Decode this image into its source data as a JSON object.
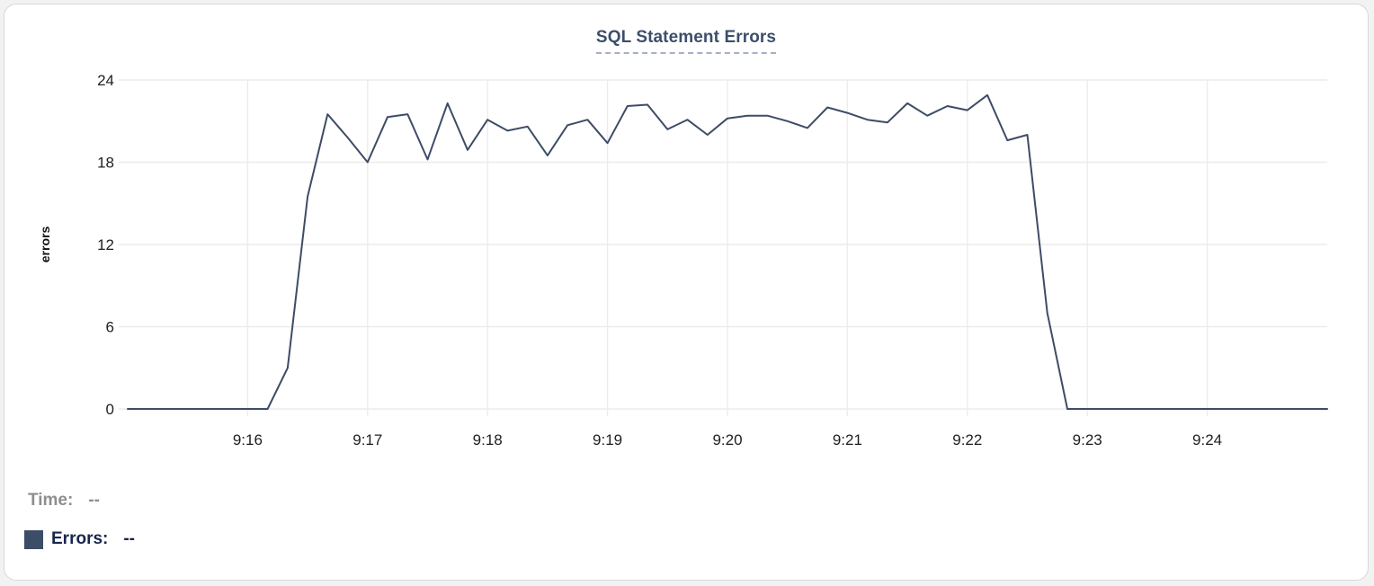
{
  "chart_data": {
    "type": "line",
    "title": "SQL Statement Errors",
    "ylabel": "errors",
    "grid": true,
    "ylim": [
      0,
      24
    ],
    "y_ticks": [
      0,
      6,
      12,
      18,
      24
    ],
    "x_tick_labels": [
      "9:16",
      "9:17",
      "9:18",
      "9:19",
      "9:20",
      "9:21",
      "9:22",
      "9:23",
      "9:24"
    ],
    "x_tick_positions_min": [
      0,
      1,
      2,
      3,
      4,
      5,
      6,
      7,
      8
    ],
    "x_start_min": -1,
    "x_end_min": 9,
    "x_step_min": 0.166667,
    "series": [
      {
        "name": "Errors",
        "color": "#3e4c66",
        "values": [
          0,
          0,
          0,
          0,
          0,
          0,
          0,
          0,
          3,
          15.5,
          21.5,
          19.8,
          18,
          21.3,
          21.5,
          18.2,
          22.3,
          18.9,
          21.1,
          20.3,
          20.6,
          18.5,
          20.7,
          21.1,
          19.4,
          22.1,
          22.2,
          20.4,
          21.1,
          20,
          21.2,
          21.4,
          21.4,
          21,
          20.5,
          22,
          21.6,
          21.1,
          20.9,
          22.3,
          21.4,
          22.1,
          21.8,
          22.9,
          19.6,
          20,
          7,
          0,
          0,
          0,
          0,
          0,
          0,
          0,
          0,
          0,
          0,
          0,
          0,
          0,
          0
        ]
      }
    ]
  },
  "readout": {
    "time_label": "Time:",
    "time_value": "--",
    "errors_label": "Errors:",
    "errors_value": "--",
    "swatch_color": "#3c4d68"
  },
  "colors": {
    "title": "#3d4e6c",
    "grid": "#ececec",
    "axis_text": "#212121",
    "time_label_gray": "#8e8e8e",
    "errors_label_navy": "#17264d",
    "card_border": "#d8d8d8"
  }
}
